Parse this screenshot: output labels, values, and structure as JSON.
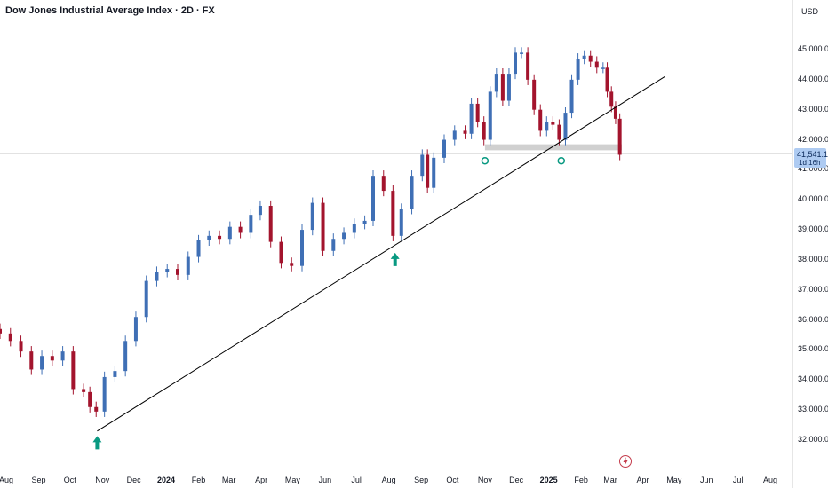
{
  "header": {
    "title": "Dow Jones Industrial Average Index · 2D · FX",
    "currency": "USD"
  },
  "price_badge": {
    "price": "41,541.13",
    "countdown": "1d 16h"
  },
  "colors": {
    "up": "#3f6fb5",
    "down": "#a3142d",
    "trendline": "#000000",
    "zone": "#c8c8c8",
    "arrow": "#089981"
  },
  "chart_data": {
    "type": "candlestick",
    "title": "Dow Jones Industrial Average Index · 2D · FX",
    "y_axis": {
      "ticks": [
        32000,
        33000,
        34000,
        35000,
        36000,
        37000,
        38000,
        39000,
        40000,
        41000,
        42000,
        43000,
        44000,
        45000
      ],
      "tick_labels": [
        "32,000.00",
        "33,000.00",
        "34,000.00",
        "35,000.00",
        "36,000.00",
        "37,000.00",
        "38,000.00",
        "39,000.00",
        "40,000.00",
        "41,000.00",
        "42,000.00",
        "43,000.00",
        "44,000.00",
        "45,000.00"
      ],
      "ylim": [
        31600,
        46200
      ]
    },
    "x_axis": {
      "labels": [
        "Aug",
        "Sep",
        "Oct",
        "Nov",
        "Dec",
        "2024",
        "Feb",
        "Mar",
        "Apr",
        "May",
        "Jun",
        "Jul",
        "Aug",
        "Sep",
        "Oct",
        "Nov",
        "Dec",
        "2025",
        "Feb",
        "Mar",
        "Apr",
        "May",
        "Jun",
        "Jul",
        "Aug"
      ],
      "bold": [
        "2024",
        "2025"
      ]
    },
    "current_price": 41541.13,
    "trendline": {
      "from": {
        "x": "2023-10-27",
        "y": 32300
      },
      "to": {
        "x": "2025-04-22",
        "y": 44100
      }
    },
    "support_zone": {
      "from": "2024-11-01",
      "to": "2025-03-12",
      "y_low": 41650,
      "y_high": 41850
    },
    "markers": [
      {
        "type": "arrow-up",
        "x": "2023-10-27",
        "y": 31900
      },
      {
        "type": "arrow-up",
        "x": "2024-08-07",
        "y": 38000
      },
      {
        "type": "circle",
        "x": "2024-11-01",
        "y": 41300
      },
      {
        "type": "circle",
        "x": "2025-01-13",
        "y": 41300
      }
    ],
    "close_series": [
      {
        "x": "2023-07-26",
        "y": 35550
      },
      {
        "x": "2023-08-05",
        "y": 35300
      },
      {
        "x": "2023-08-15",
        "y": 34950
      },
      {
        "x": "2023-08-25",
        "y": 34350
      },
      {
        "x": "2023-09-04",
        "y": 34800
      },
      {
        "x": "2023-09-14",
        "y": 34650
      },
      {
        "x": "2023-09-24",
        "y": 34950
      },
      {
        "x": "2023-10-04",
        "y": 33700
      },
      {
        "x": "2023-10-14",
        "y": 33600
      },
      {
        "x": "2023-10-20",
        "y": 33100
      },
      {
        "x": "2023-10-26",
        "y": 32950
      },
      {
        "x": "2023-11-03",
        "y": 34100
      },
      {
        "x": "2023-11-13",
        "y": 34300
      },
      {
        "x": "2023-11-23",
        "y": 35300
      },
      {
        "x": "2023-12-03",
        "y": 36100
      },
      {
        "x": "2023-12-13",
        "y": 37300
      },
      {
        "x": "2023-12-23",
        "y": 37600
      },
      {
        "x": "2024-01-02",
        "y": 37700
      },
      {
        "x": "2024-01-12",
        "y": 37500
      },
      {
        "x": "2024-01-22",
        "y": 38100
      },
      {
        "x": "2024-02-01",
        "y": 38650
      },
      {
        "x": "2024-02-11",
        "y": 38800
      },
      {
        "x": "2024-02-21",
        "y": 38700
      },
      {
        "x": "2024-03-02",
        "y": 39100
      },
      {
        "x": "2024-03-12",
        "y": 38900
      },
      {
        "x": "2024-03-22",
        "y": 39500
      },
      {
        "x": "2024-03-31",
        "y": 39800
      },
      {
        "x": "2024-04-10",
        "y": 38600
      },
      {
        "x": "2024-04-20",
        "y": 37900
      },
      {
        "x": "2024-04-30",
        "y": 37800
      },
      {
        "x": "2024-05-10",
        "y": 39000
      },
      {
        "x": "2024-05-20",
        "y": 39900
      },
      {
        "x": "2024-05-30",
        "y": 38300
      },
      {
        "x": "2024-06-09",
        "y": 38700
      },
      {
        "x": "2024-06-19",
        "y": 38900
      },
      {
        "x": "2024-06-29",
        "y": 39200
      },
      {
        "x": "2024-07-09",
        "y": 39300
      },
      {
        "x": "2024-07-17",
        "y": 40800
      },
      {
        "x": "2024-07-27",
        "y": 40300
      },
      {
        "x": "2024-08-05",
        "y": 38800
      },
      {
        "x": "2024-08-13",
        "y": 39700
      },
      {
        "x": "2024-08-23",
        "y": 40800
      },
      {
        "x": "2024-09-02",
        "y": 41500
      },
      {
        "x": "2024-09-07",
        "y": 40400
      },
      {
        "x": "2024-09-13",
        "y": 41400
      },
      {
        "x": "2024-09-23",
        "y": 42000
      },
      {
        "x": "2024-10-03",
        "y": 42300
      },
      {
        "x": "2024-10-13",
        "y": 42200
      },
      {
        "x": "2024-10-19",
        "y": 43200
      },
      {
        "x": "2024-10-25",
        "y": 42600
      },
      {
        "x": "2024-10-31",
        "y": 42000
      },
      {
        "x": "2024-11-06",
        "y": 43600
      },
      {
        "x": "2024-11-12",
        "y": 44200
      },
      {
        "x": "2024-11-18",
        "y": 43300
      },
      {
        "x": "2024-11-24",
        "y": 44200
      },
      {
        "x": "2024-11-30",
        "y": 44900
      },
      {
        "x": "2024-12-06",
        "y": 44900
      },
      {
        "x": "2024-12-12",
        "y": 44000
      },
      {
        "x": "2024-12-18",
        "y": 43000
      },
      {
        "x": "2024-12-24",
        "y": 42300
      },
      {
        "x": "2024-12-30",
        "y": 42600
      },
      {
        "x": "2025-01-05",
        "y": 42500
      },
      {
        "x": "2025-01-11",
        "y": 42000
      },
      {
        "x": "2025-01-17",
        "y": 42900
      },
      {
        "x": "2025-01-23",
        "y": 44000
      },
      {
        "x": "2025-01-29",
        "y": 44700
      },
      {
        "x": "2025-02-04",
        "y": 44800
      },
      {
        "x": "2025-02-10",
        "y": 44600
      },
      {
        "x": "2025-02-16",
        "y": 44400
      },
      {
        "x": "2025-02-22",
        "y": 44400
      },
      {
        "x": "2025-02-26",
        "y": 43600
      },
      {
        "x": "2025-03-02",
        "y": 43100
      },
      {
        "x": "2025-03-06",
        "y": 42700
      },
      {
        "x": "2025-03-10",
        "y": 41500
      }
    ]
  }
}
